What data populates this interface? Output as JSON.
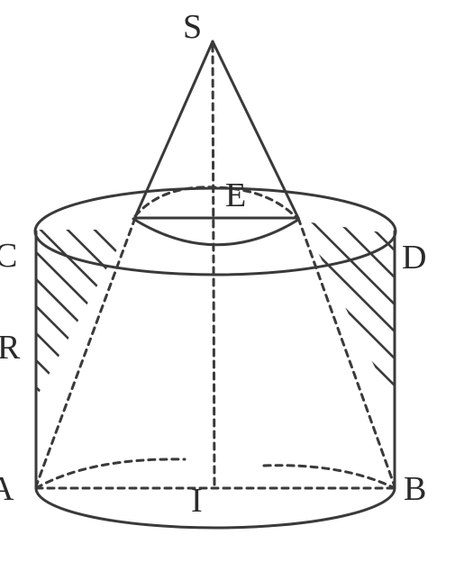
{
  "labels": {
    "S": "S",
    "E": "E",
    "C": "C",
    "D": "D",
    "R": "R",
    "A": "A",
    "B": "B",
    "I": "I"
  }
}
